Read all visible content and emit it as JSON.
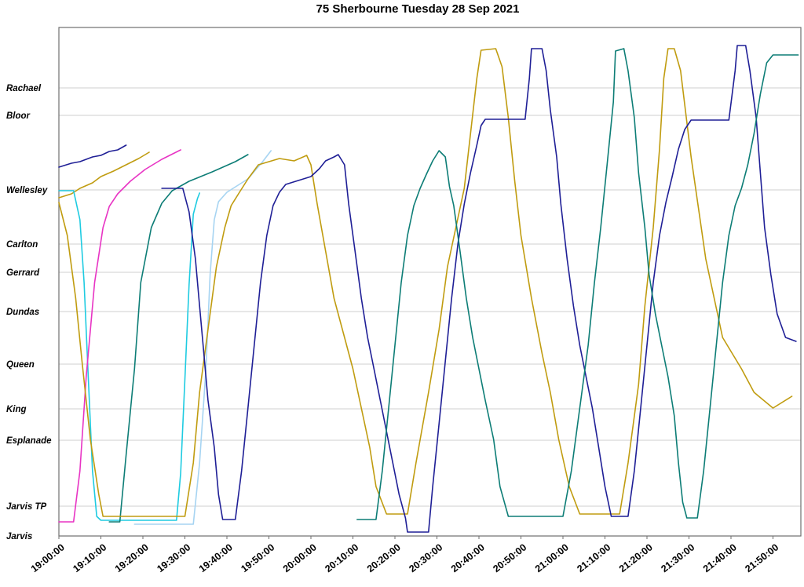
{
  "title": "75 Sherbourne Tuesday 28 Sep 2021",
  "chart_data": {
    "type": "line",
    "title": "75 Sherbourne Tuesday 28 Sep 2021",
    "xlabel": "",
    "ylabel": "",
    "x_unit": "minutes after 19:00:00",
    "y_unit": "position along route (0 = Jarvis, 648 = north end)",
    "grid": "horizontal",
    "legend": "none",
    "x_axis": {
      "tick_interval_minutes": 10,
      "tick_labels": [
        "19:00:00",
        "19:10:00",
        "19:20:00",
        "19:30:00",
        "19:40:00",
        "19:50:00",
        "20:00:00",
        "20:10:00",
        "20:20:00",
        "20:30:00",
        "20:40:00",
        "20:50:00",
        "21:00:00",
        "21:10:00",
        "21:20:00",
        "21:30:00",
        "21:40:00",
        "21:50:00"
      ]
    },
    "y_axis": {
      "max_units": 648,
      "stops": [
        {
          "label": "Rachael",
          "position": 571
        },
        {
          "label": "Bloor",
          "position": 536
        },
        {
          "label": "Wellesley",
          "position": 441
        },
        {
          "label": "Carlton",
          "position": 372
        },
        {
          "label": "Gerrard",
          "position": 336
        },
        {
          "label": "Dundas",
          "position": 286
        },
        {
          "label": "Queen",
          "position": 219
        },
        {
          "label": "King",
          "position": 162
        },
        {
          "label": "Esplanade",
          "position": 122
        },
        {
          "label": "Jarvis TP",
          "position": 38
        },
        {
          "label": "Jarvis",
          "position": 0
        }
      ]
    },
    "series": [
      {
        "name": "navy-run-1",
        "color": "#1f1f96",
        "points": [
          [
            0,
            470
          ],
          [
            3,
            475
          ],
          [
            5,
            477
          ],
          [
            8,
            483
          ],
          [
            10,
            485
          ],
          [
            12,
            490
          ],
          [
            14,
            492
          ],
          [
            16,
            498
          ]
        ]
      },
      {
        "name": "gold-run-1",
        "color": "#c09c10",
        "points": [
          [
            0,
            431
          ],
          [
            3,
            436
          ],
          [
            5,
            443
          ],
          [
            8,
            450
          ],
          [
            10,
            458
          ],
          [
            13,
            465
          ],
          [
            16,
            473
          ],
          [
            19,
            481
          ],
          [
            21.5,
            489
          ]
        ]
      },
      {
        "name": "cyan-run-1",
        "color": "#1ecbe1",
        "points": [
          [
            0,
            440
          ],
          [
            3.5,
            440
          ],
          [
            5,
            403
          ],
          [
            6,
            323
          ],
          [
            7,
            203
          ],
          [
            8,
            83
          ],
          [
            9,
            25
          ],
          [
            10,
            20
          ],
          [
            28,
            20
          ],
          [
            29,
            80
          ],
          [
            30,
            200
          ],
          [
            31,
            320
          ],
          [
            32,
            410
          ],
          [
            33,
            430
          ],
          [
            33.5,
            437
          ]
        ]
      },
      {
        "name": "magenta-run-1",
        "color": "#e834c4",
        "points": [
          [
            0,
            18
          ],
          [
            3.5,
            18
          ],
          [
            5,
            83
          ],
          [
            6.5,
            203
          ],
          [
            8.5,
            323
          ],
          [
            10.5,
            393
          ],
          [
            12,
            420
          ],
          [
            14,
            436
          ],
          [
            17,
            452
          ],
          [
            20.5,
            467
          ],
          [
            24.5,
            480
          ],
          [
            29,
            492
          ]
        ]
      },
      {
        "name": "teal-run-1",
        "color": "#0d7d76",
        "points": [
          [
            12,
            18
          ],
          [
            14.5,
            18
          ],
          [
            16,
            103
          ],
          [
            18,
            213
          ],
          [
            19.5,
            323
          ],
          [
            22,
            393
          ],
          [
            24.5,
            424
          ],
          [
            27,
            440
          ],
          [
            31,
            452
          ],
          [
            36.5,
            464
          ],
          [
            42,
            477
          ],
          [
            45,
            486
          ]
        ]
      },
      {
        "name": "lightblue-run-1",
        "color": "#a6d4f2",
        "points": [
          [
            18,
            15
          ],
          [
            32,
            15
          ],
          [
            33.5,
            93
          ],
          [
            35,
            213
          ],
          [
            36,
            333
          ],
          [
            37,
            403
          ],
          [
            38,
            426
          ],
          [
            40,
            438
          ],
          [
            45,
            455
          ],
          [
            48.5,
            477
          ],
          [
            50.5,
            491
          ]
        ]
      },
      {
        "name": "gold-run-2",
        "color": "#c09c10",
        "points": [
          [
            0,
            425
          ],
          [
            2,
            383
          ],
          [
            4,
            303
          ],
          [
            5.5,
            223
          ],
          [
            7.5,
            123
          ],
          [
            9.5,
            53
          ],
          [
            10.5,
            25
          ],
          [
            30,
            25
          ],
          [
            32,
            93
          ],
          [
            33.5,
            183
          ],
          [
            35.5,
            263
          ],
          [
            37.5,
            343
          ],
          [
            39.5,
            393
          ],
          [
            41,
            421
          ],
          [
            43,
            438
          ],
          [
            45,
            455
          ],
          [
            47.5,
            473
          ],
          [
            52.5,
            481
          ],
          [
            56,
            478
          ],
          [
            59,
            485
          ],
          [
            60,
            473
          ],
          [
            61.5,
            423
          ],
          [
            63.5,
            363
          ],
          [
            65.5,
            303
          ],
          [
            68,
            253
          ],
          [
            70,
            213
          ],
          [
            72,
            163
          ],
          [
            74,
            113
          ],
          [
            75.5,
            63
          ],
          [
            78,
            28
          ],
          [
            83,
            28
          ],
          [
            85,
            93
          ],
          [
            88,
            183
          ],
          [
            90.5,
            263
          ],
          [
            92.5,
            343
          ],
          [
            94.5,
            393
          ],
          [
            96.5,
            443
          ],
          [
            98,
            513
          ],
          [
            99.5,
            583
          ],
          [
            100.5,
            619
          ],
          [
            104,
            621
          ],
          [
            105.5,
            598
          ],
          [
            107,
            533
          ],
          [
            108.5,
            453
          ],
          [
            110,
            383
          ],
          [
            112.5,
            303
          ],
          [
            115,
            233
          ],
          [
            117,
            183
          ],
          [
            119,
            123
          ],
          [
            121.5,
            63
          ],
          [
            124,
            28
          ],
          [
            133.5,
            28
          ],
          [
            135.5,
            93
          ],
          [
            138,
            193
          ],
          [
            139.5,
            293
          ],
          [
            141.5,
            393
          ],
          [
            143,
            493
          ],
          [
            144,
            583
          ],
          [
            145,
            621
          ],
          [
            146.5,
            621
          ],
          [
            148,
            593
          ],
          [
            150.5,
            483
          ],
          [
            154,
            353
          ],
          [
            158,
            253
          ],
          [
            162.5,
            213
          ],
          [
            165.5,
            183
          ],
          [
            170,
            163
          ],
          [
            174.5,
            178
          ]
        ]
      },
      {
        "name": "navy-run-2",
        "color": "#1f1f96",
        "points": [
          [
            24.5,
            443
          ],
          [
            29.5,
            443
          ],
          [
            31,
            413
          ],
          [
            32.5,
            353
          ],
          [
            33.5,
            293
          ],
          [
            34.5,
            233
          ],
          [
            35.5,
            173
          ],
          [
            37,
            113
          ],
          [
            38,
            53
          ],
          [
            39,
            21
          ],
          [
            42,
            21
          ],
          [
            43.5,
            83
          ],
          [
            45,
            163
          ],
          [
            46.5,
            243
          ],
          [
            48,
            323
          ],
          [
            49.5,
            383
          ],
          [
            51,
            421
          ],
          [
            52.5,
            438
          ],
          [
            54,
            448
          ],
          [
            57,
            453
          ],
          [
            60,
            458
          ],
          [
            62,
            468
          ],
          [
            63.5,
            478
          ],
          [
            65.5,
            483
          ],
          [
            66.5,
            486
          ],
          [
            68,
            473
          ],
          [
            69,
            423
          ],
          [
            70.5,
            363
          ],
          [
            72,
            303
          ],
          [
            73.5,
            253
          ],
          [
            75,
            213
          ],
          [
            76.5,
            173
          ],
          [
            78,
            133
          ],
          [
            79.5,
            93
          ],
          [
            81,
            53
          ],
          [
            82.5,
            23
          ],
          [
            83,
            5
          ],
          [
            88,
            5
          ],
          [
            89,
            63
          ],
          [
            90.5,
            143
          ],
          [
            92,
            223
          ],
          [
            93.5,
            303
          ],
          [
            95,
            373
          ],
          [
            96.5,
            423
          ],
          [
            98,
            463
          ],
          [
            99.5,
            498
          ],
          [
            100.5,
            523
          ],
          [
            101.5,
            531
          ],
          [
            111,
            531
          ],
          [
            112,
            583
          ],
          [
            112.5,
            621
          ],
          [
            115,
            621
          ],
          [
            116,
            593
          ],
          [
            117,
            543
          ],
          [
            118.5,
            483
          ],
          [
            119.5,
            423
          ],
          [
            121,
            353
          ],
          [
            122.5,
            293
          ],
          [
            124,
            243
          ],
          [
            125.5,
            203
          ],
          [
            127,
            163
          ],
          [
            128.5,
            113
          ],
          [
            130,
            63
          ],
          [
            131.5,
            25
          ],
          [
            135.5,
            25
          ],
          [
            137,
            83
          ],
          [
            138.5,
            163
          ],
          [
            140,
            243
          ],
          [
            141.5,
            323
          ],
          [
            143,
            383
          ],
          [
            144.5,
            425
          ],
          [
            146,
            458
          ],
          [
            147.5,
            493
          ],
          [
            149,
            518
          ],
          [
            150.5,
            530
          ],
          [
            159.5,
            530
          ],
          [
            161,
            593
          ],
          [
            161.5,
            625
          ],
          [
            163.5,
            625
          ],
          [
            164.5,
            593
          ],
          [
            166,
            533
          ],
          [
            167,
            463
          ],
          [
            168,
            393
          ],
          [
            169.5,
            333
          ],
          [
            171,
            283
          ],
          [
            173,
            253
          ],
          [
            175.5,
            248
          ]
        ]
      },
      {
        "name": "teal-run-2",
        "color": "#0d7d76",
        "points": [
          [
            71,
            21
          ],
          [
            75.5,
            21
          ],
          [
            77,
            83
          ],
          [
            78.5,
            163
          ],
          [
            80,
            243
          ],
          [
            81.5,
            323
          ],
          [
            83,
            383
          ],
          [
            84.5,
            421
          ],
          [
            86,
            443
          ],
          [
            87.5,
            461
          ],
          [
            89,
            478
          ],
          [
            90.5,
            491
          ],
          [
            92,
            483
          ],
          [
            93,
            445
          ],
          [
            94,
            421
          ],
          [
            95.5,
            363
          ],
          [
            97,
            303
          ],
          [
            98.5,
            253
          ],
          [
            100,
            213
          ],
          [
            101.5,
            173
          ],
          [
            103.5,
            123
          ],
          [
            105,
            63
          ],
          [
            107,
            25
          ],
          [
            120,
            25
          ],
          [
            122,
            83
          ],
          [
            124,
            163
          ],
          [
            126,
            243
          ],
          [
            127.5,
            323
          ],
          [
            129,
            393
          ],
          [
            130.5,
            473
          ],
          [
            132,
            553
          ],
          [
            132.5,
            618
          ],
          [
            134.5,
            621
          ],
          [
            135.5,
            593
          ],
          [
            137,
            533
          ],
          [
            138,
            463
          ],
          [
            139.5,
            393
          ],
          [
            140.5,
            333
          ],
          [
            142,
            283
          ],
          [
            143.5,
            243
          ],
          [
            145,
            203
          ],
          [
            146.5,
            153
          ],
          [
            147.5,
            93
          ],
          [
            148.5,
            43
          ],
          [
            149.5,
            23
          ],
          [
            152,
            23
          ],
          [
            153.5,
            83
          ],
          [
            155,
            163
          ],
          [
            156.5,
            243
          ],
          [
            158,
            323
          ],
          [
            159.5,
            383
          ],
          [
            161,
            421
          ],
          [
            162.5,
            443
          ],
          [
            164,
            473
          ],
          [
            165.5,
            513
          ],
          [
            167,
            563
          ],
          [
            168.5,
            603
          ],
          [
            170,
            613
          ],
          [
            176,
            613
          ]
        ]
      }
    ]
  }
}
